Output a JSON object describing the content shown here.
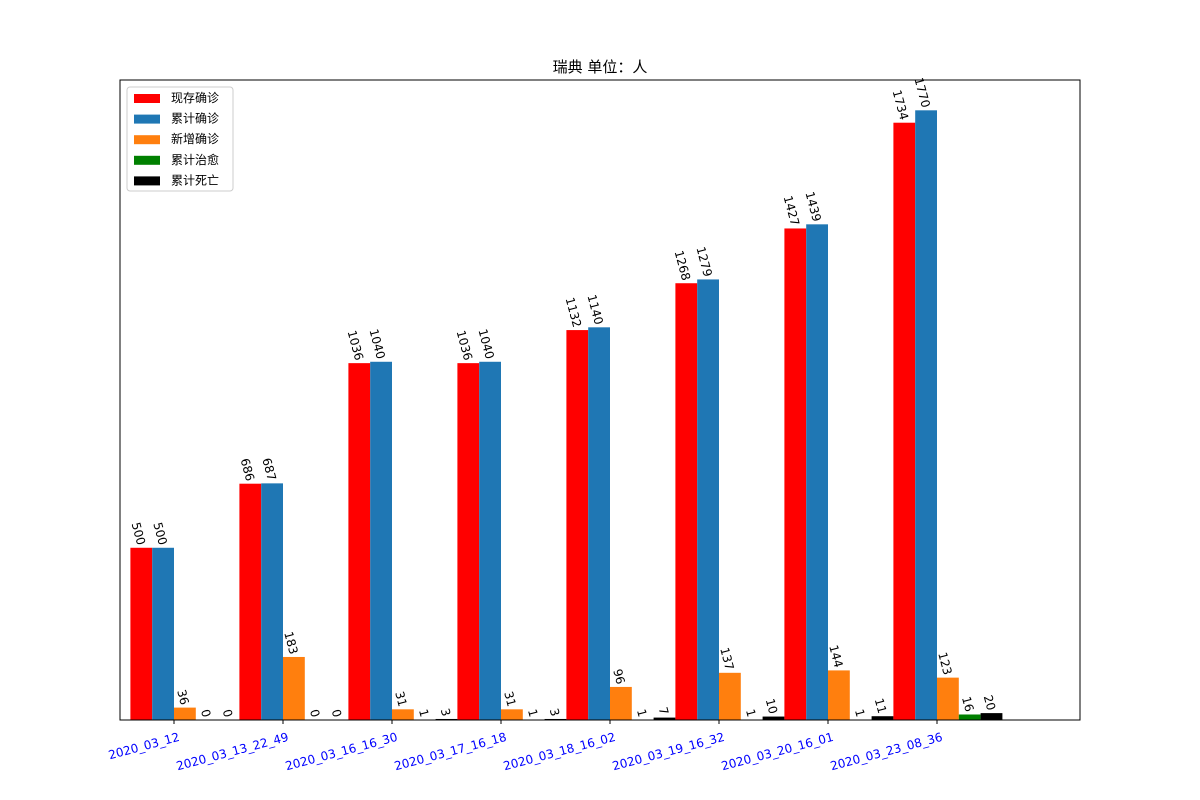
{
  "chart_data": {
    "type": "bar",
    "title": "瑞典 单位：人",
    "xlabel": "",
    "ylabel": "",
    "ylim": [
      0,
      1858
    ],
    "grid": false,
    "legend_position": "top-left",
    "tick_color": "#0000ff",
    "categories": [
      "2020_03_12",
      "2020_03_13_22_49",
      "2020_03_16_16_30",
      "2020_03_17_16_18",
      "2020_03_18_16_02",
      "2020_03_19_16_32",
      "2020_03_20_16_01",
      "2020_03_23_08_36"
    ],
    "series": [
      {
        "name": "现存确诊",
        "color": "#ff0000",
        "values": [
          500,
          686,
          1036,
          1036,
          1132,
          1268,
          1427,
          1734
        ]
      },
      {
        "name": "累计确诊",
        "color": "#1f77b4",
        "values": [
          500,
          687,
          1040,
          1040,
          1140,
          1279,
          1439,
          1770
        ]
      },
      {
        "name": "新增确诊",
        "color": "#ff7f0e",
        "values": [
          36,
          183,
          31,
          31,
          96,
          137,
          144,
          123
        ]
      },
      {
        "name": "累计治愈",
        "color": "#008000",
        "values": [
          0,
          0,
          1,
          1,
          1,
          1,
          1,
          16
        ]
      },
      {
        "name": "累计死亡",
        "color": "#000000",
        "values": [
          0,
          0,
          3,
          3,
          7,
          10,
          11,
          20
        ]
      }
    ]
  }
}
